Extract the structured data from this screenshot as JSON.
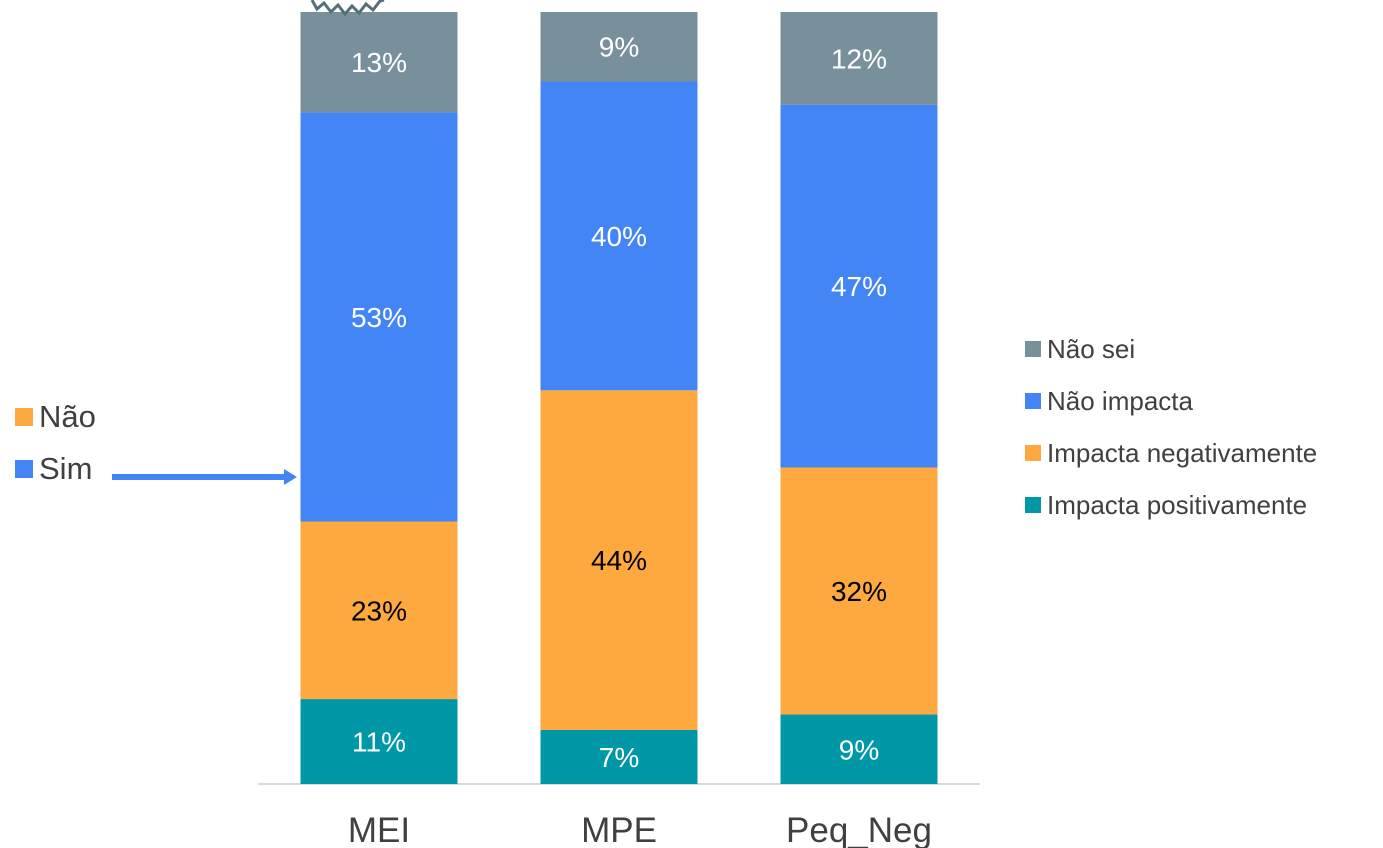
{
  "chart_data": {
    "type": "bar",
    "stacked": true,
    "categories": [
      "MEI",
      "MPE",
      "Peq_Neg"
    ],
    "series": [
      {
        "name": "Impacta positivamente",
        "values": [
          11,
          7,
          9
        ],
        "labels": [
          "11%",
          "7%",
          "9%"
        ],
        "color": "#0097A7"
      },
      {
        "name": "Impacta negativamente",
        "values": [
          23,
          44,
          32
        ],
        "labels": [
          "23%",
          "44%",
          "32%"
        ],
        "color": "#FDA940"
      },
      {
        "name": "Não impacta",
        "values": [
          53,
          40,
          47
        ],
        "labels": [
          "53%",
          "40%",
          "47%"
        ],
        "color": "#4385F5"
      },
      {
        "name": "Não sei",
        "values": [
          13,
          9,
          12
        ],
        "labels": [
          "13%",
          "9%",
          "12%"
        ],
        "color": "#78909C"
      }
    ],
    "legend_position": "right",
    "grid": false,
    "title": "",
    "xlabel": "",
    "ylabel": "",
    "ylim": [
      0,
      100
    ]
  },
  "side_legend": {
    "items": [
      {
        "label": "Não",
        "color": "#FDA940"
      },
      {
        "label": "Sim",
        "color": "#4385F5"
      }
    ],
    "arrow_color": "#4385F5"
  },
  "colors": {
    "axis_line": "#D9D9D9",
    "break_mark": "#546E7A",
    "label_light": "#FFFFFF",
    "label_dark": "#000000",
    "tick_text": "#404040"
  }
}
